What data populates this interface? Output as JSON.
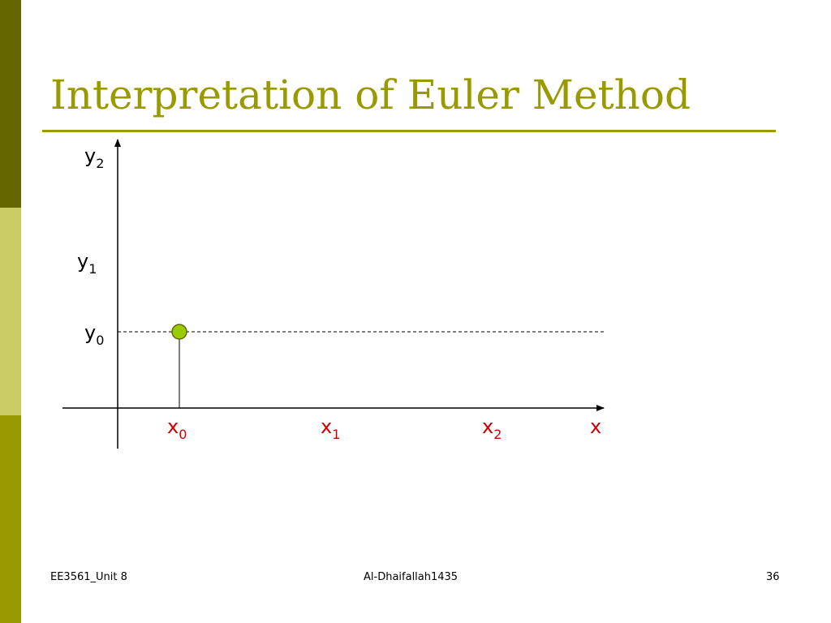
{
  "colors": {
    "sidebar_top": "#666600",
    "sidebar_middle": "#cccc66",
    "sidebar_bottom": "#999900",
    "title": "#999900",
    "rule": "#999900",
    "axis": "#000000",
    "x_labels": "#cc0000",
    "y_labels": "#000000",
    "point_fill": "#99cc00",
    "point_stroke": "#666600"
  },
  "slide": {
    "title": "Interpretation of Euler Method"
  },
  "diagram": {
    "x_axis_label": "x",
    "x_ticks": [
      {
        "base": "x",
        "sub": "0"
      },
      {
        "base": "x",
        "sub": "1"
      },
      {
        "base": "x",
        "sub": "2"
      }
    ],
    "y_ticks": [
      {
        "base": "y",
        "sub": "0"
      },
      {
        "base": "y",
        "sub": "1"
      },
      {
        "base": "y",
        "sub": "2"
      }
    ],
    "initial_point": "(x0, y0)"
  },
  "footer": {
    "course": "EE3561_Unit 8",
    "author": "Al-Dhaifallah1435",
    "page_number": "36"
  }
}
